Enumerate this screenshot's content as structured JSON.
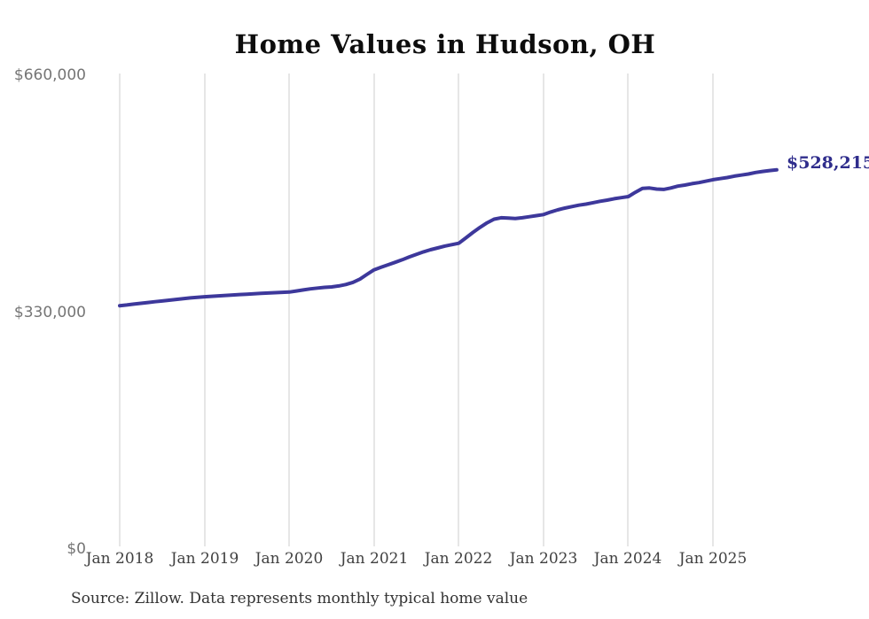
{
  "source_note": "Source: Zillow. Data represents monthly typical home value",
  "chart_data": {
    "type": "line",
    "title": "Home Values in Hudson, OH",
    "xlabel": "",
    "ylabel": "",
    "ylim": [
      0,
      660000
    ],
    "grid": "vertical-only",
    "legend": "none",
    "line_color": "#3d389b",
    "end_label": "$528,215",
    "end_value": 528215,
    "y_ticks": [
      660000,
      330000,
      0
    ],
    "y_tick_labels": [
      "$660,000",
      "$330,000",
      "$0"
    ],
    "x_tick_labels": [
      "Jan 2018",
      "Jan 2019",
      "Jan 2020",
      "Jan 2021",
      "Jan 2022",
      "Jan 2023",
      "Jan 2024",
      "Jan 2025"
    ],
    "x_cadence": "monthly",
    "months": [
      "2018-01",
      "2018-02",
      "2018-03",
      "2018-04",
      "2018-05",
      "2018-06",
      "2018-07",
      "2018-08",
      "2018-09",
      "2018-10",
      "2018-11",
      "2018-12",
      "2019-01",
      "2019-02",
      "2019-03",
      "2019-04",
      "2019-05",
      "2019-06",
      "2019-07",
      "2019-08",
      "2019-09",
      "2019-10",
      "2019-11",
      "2019-12",
      "2020-01",
      "2020-02",
      "2020-03",
      "2020-04",
      "2020-05",
      "2020-06",
      "2020-07",
      "2020-08",
      "2020-09",
      "2020-10",
      "2020-11",
      "2020-12",
      "2021-01",
      "2021-02",
      "2021-03",
      "2021-04",
      "2021-05",
      "2021-06",
      "2021-07",
      "2021-08",
      "2021-09",
      "2021-10",
      "2021-11",
      "2021-12",
      "2022-01",
      "2022-02",
      "2022-03",
      "2022-04",
      "2022-05",
      "2022-06",
      "2022-07",
      "2022-08",
      "2022-09",
      "2022-10",
      "2022-11",
      "2022-12",
      "2023-01",
      "2023-02",
      "2023-03",
      "2023-04",
      "2023-05",
      "2023-06",
      "2023-07",
      "2023-08",
      "2023-09",
      "2023-10",
      "2023-11",
      "2023-12",
      "2024-01",
      "2024-02",
      "2024-03",
      "2024-04",
      "2024-05",
      "2024-06",
      "2024-07",
      "2024-08",
      "2024-09",
      "2024-10",
      "2024-11",
      "2024-12",
      "2025-01",
      "2025-02",
      "2025-03",
      "2025-04",
      "2025-05",
      "2025-06",
      "2025-07",
      "2025-08",
      "2025-09",
      "2025-10"
    ],
    "values": [
      339000,
      340000,
      341200,
      342300,
      343400,
      344500,
      345600,
      346700,
      347800,
      348800,
      349800,
      350700,
      351500,
      352100,
      352700,
      353300,
      353900,
      354500,
      355000,
      355500,
      356100,
      356600,
      357100,
      357600,
      358000,
      359500,
      361000,
      362500,
      363500,
      364500,
      365200,
      366500,
      368500,
      371500,
      376000,
      382500,
      389000,
      392500,
      396000,
      399500,
      403000,
      407000,
      410500,
      414000,
      417000,
      419500,
      422000,
      424000,
      426000,
      433500,
      441000,
      448000,
      454500,
      459500,
      461500,
      461000,
      460500,
      461500,
      463000,
      464500,
      466000,
      469500,
      472500,
      475000,
      477000,
      479000,
      480500,
      482500,
      484500,
      486000,
      488000,
      489500,
      491000,
      497000,
      502500,
      503000,
      501500,
      501000,
      503000,
      505500,
      507000,
      509000,
      510500,
      512500,
      514500,
      516000,
      517500,
      519500,
      521000,
      522500,
      524500,
      526000,
      527200,
      528215
    ]
  }
}
